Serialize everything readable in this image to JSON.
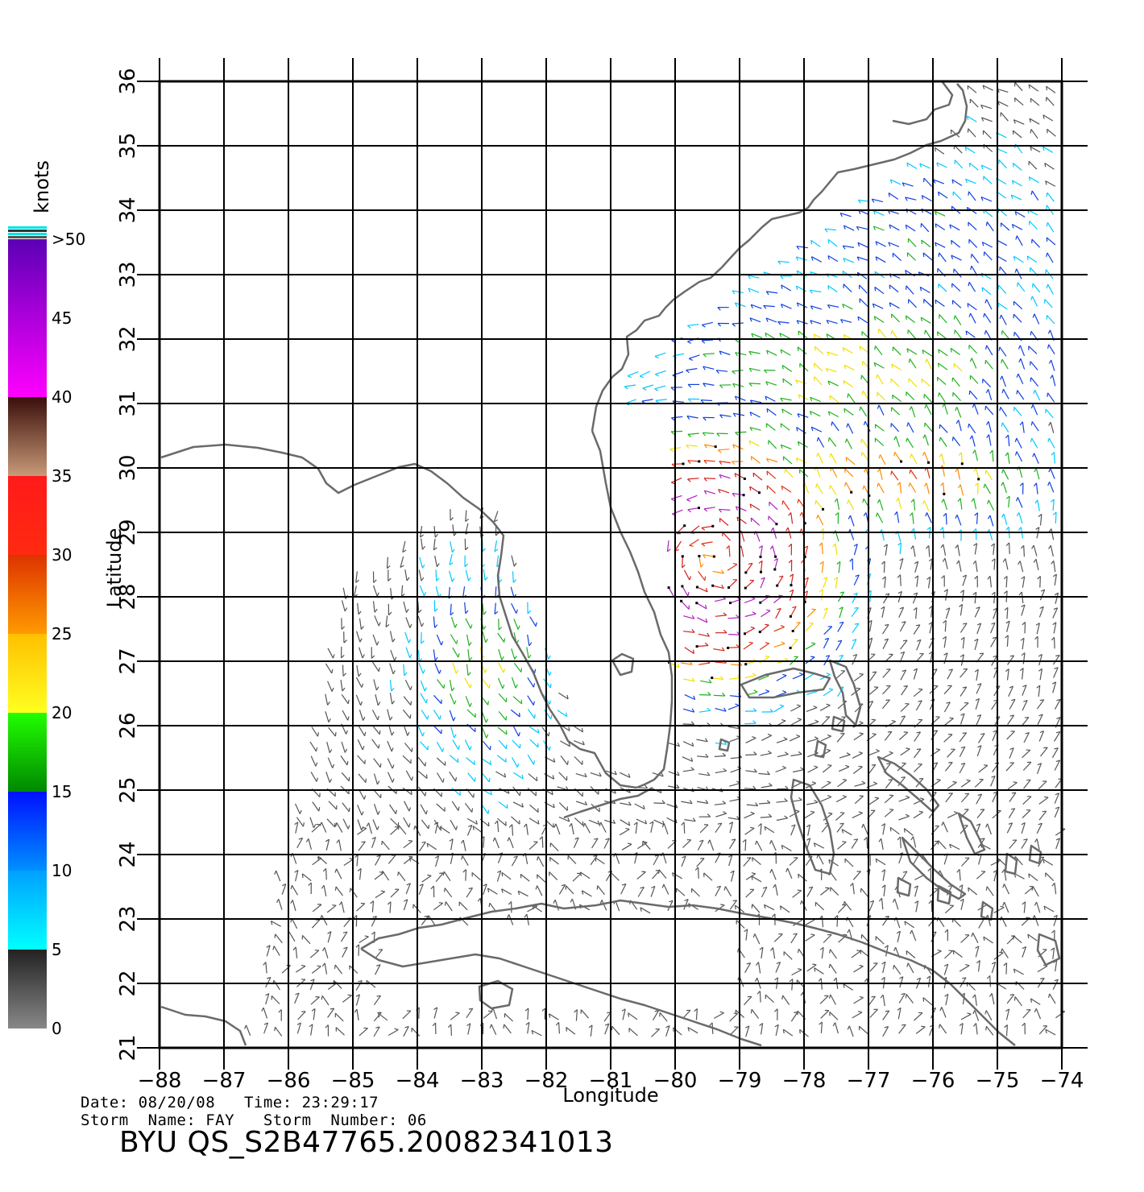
{
  "colorbar": {
    "unit": "knots",
    "labels": [
      ">50",
      "45",
      "40",
      "35",
      "30",
      "25",
      "20",
      "15",
      "10",
      "5",
      "0"
    ],
    "segments": [
      {
        "from": 50,
        "to": 40,
        "top": "#5b00b5",
        "bottom": "#ff00ff"
      },
      {
        "from": 40,
        "to": 35,
        "top": "#3a0e0a",
        "bottom": "#c89a78"
      },
      {
        "from": 35,
        "to": 30,
        "top": "#ff1a1a",
        "bottom": "#ff2a10"
      },
      {
        "from": 30,
        "to": 25,
        "top": "#dd3300",
        "bottom": "#ff9a00"
      },
      {
        "from": 25,
        "to": 20,
        "top": "#ffc000",
        "bottom": "#ffff20"
      },
      {
        "from": 20,
        "to": 15,
        "top": "#22ff00",
        "bottom": "#008800"
      },
      {
        "from": 15,
        "to": 10,
        "top": "#0010ff",
        "bottom": "#0090ff"
      },
      {
        "from": 10,
        "to": 5,
        "top": "#00a0ff",
        "bottom": "#00ffff"
      },
      {
        "from": 5,
        "to": 0,
        "top": "#222222",
        "bottom": "#888888"
      }
    ]
  },
  "axes": {
    "xlabel": "Longitude",
    "ylabel": "Latitude",
    "xticks": [
      "−88",
      "−87",
      "−86",
      "−85",
      "−84",
      "−83",
      "−82",
      "−81",
      "−80",
      "−79",
      "−78",
      "−77",
      "−76",
      "−75",
      "−74"
    ],
    "yticks": [
      "21",
      "22",
      "23",
      "24",
      "25",
      "26",
      "27",
      "28",
      "29",
      "30",
      "31",
      "32",
      "33",
      "34",
      "35",
      "36"
    ],
    "xlim": [
      -88,
      -74
    ],
    "ylim": [
      21,
      36
    ],
    "grid": true
  },
  "footer": {
    "line1": "Date: 08/20/08   Time: 23:29:17",
    "line2": "Storm  Name: FAY   Storm  Number: 06",
    "id": "BYU  QS_S2B47765.20082341013"
  },
  "colors": {
    "coastline": "#6a6a6a",
    "grid": "#000000",
    "rain_flag": "#000000"
  }
}
